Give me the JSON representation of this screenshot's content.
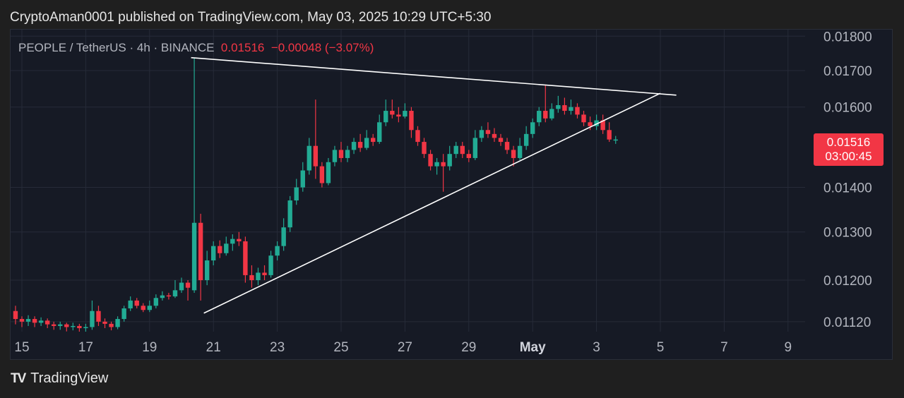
{
  "publisher_line": "CryptoAman0001 published on TradingView.com, May 03, 2025 10:29 UTC+5:30",
  "legend": {
    "symbol": "PEOPLE / TetherUS · 4h · BINANCE",
    "last": "0.01516",
    "change": "−0.00048 (−3.07%)"
  },
  "price_badge": {
    "price": "0.01516",
    "countdown": "03:00:45"
  },
  "brand": {
    "logo_text": "TV",
    "name": "TradingView"
  },
  "colors": {
    "up": "#22ab94",
    "down": "#f23645",
    "background": "#161a25",
    "trendline": "#ffffff"
  },
  "chart_data": {
    "type": "candlestick",
    "title": "PEOPLE / TetherUS · 4h · BINANCE",
    "x_ticks": [
      {
        "label": "15",
        "day": 15
      },
      {
        "label": "17",
        "day": 17
      },
      {
        "label": "19",
        "day": 19
      },
      {
        "label": "21",
        "day": 21
      },
      {
        "label": "23",
        "day": 23
      },
      {
        "label": "25",
        "day": 25
      },
      {
        "label": "27",
        "day": 27
      },
      {
        "label": "29",
        "day": 29
      },
      {
        "label": "May",
        "day": 31,
        "bold": true
      },
      {
        "label": "3",
        "day": 33
      },
      {
        "label": "5",
        "day": 35
      },
      {
        "label": "7",
        "day": 37
      },
      {
        "label": "9",
        "day": 39
      }
    ],
    "y_ticks": [
      "0.01800",
      "0.01700",
      "0.01600",
      "0.01400",
      "0.01300",
      "0.01200",
      "0.01120"
    ],
    "y_scale": "log",
    "grid": true,
    "trendlines": [
      {
        "name": "upper",
        "from": {
          "day": 20.3,
          "price": 0.01737
        },
        "to": {
          "day": 35.5,
          "price": 0.01632
        }
      },
      {
        "name": "lower",
        "from": {
          "day": 20.7,
          "price": 0.01136
        },
        "to": {
          "day": 35.0,
          "price": 0.01637
        }
      }
    ],
    "candles": [
      [
        14.8,
        0.0114,
        0.01125,
        0.0115,
        0.01115
      ],
      [
        15.0,
        0.01125,
        0.0112,
        0.0113,
        0.0111
      ],
      [
        15.2,
        0.0112,
        0.01125,
        0.01132,
        0.01112
      ],
      [
        15.4,
        0.01125,
        0.01118,
        0.0113,
        0.0111
      ],
      [
        15.6,
        0.01118,
        0.01122,
        0.01128,
        0.01112
      ],
      [
        15.8,
        0.01122,
        0.01115,
        0.01126,
        0.01108
      ],
      [
        16.0,
        0.01115,
        0.01112,
        0.0112,
        0.01105
      ],
      [
        16.2,
        0.01112,
        0.01115,
        0.0112,
        0.01105
      ],
      [
        16.4,
        0.01115,
        0.0111,
        0.01118,
        0.01102
      ],
      [
        16.6,
        0.0111,
        0.01112,
        0.01118,
        0.01104
      ],
      [
        16.8,
        0.01112,
        0.01108,
        0.01116,
        0.011
      ],
      [
        17.0,
        0.01108,
        0.0111,
        0.01116,
        0.011
      ],
      [
        17.2,
        0.0111,
        0.0114,
        0.0116,
        0.01105
      ],
      [
        17.4,
        0.0114,
        0.0112,
        0.0115,
        0.01112
      ],
      [
        17.6,
        0.0112,
        0.01116,
        0.01126,
        0.01108
      ],
      [
        17.8,
        0.01116,
        0.0111,
        0.0112,
        0.01104
      ],
      [
        18.0,
        0.0111,
        0.01125,
        0.0113,
        0.01106
      ],
      [
        18.2,
        0.01125,
        0.01145,
        0.0115,
        0.0112
      ],
      [
        18.4,
        0.01145,
        0.0116,
        0.01168,
        0.0114
      ],
      [
        18.6,
        0.0116,
        0.0115,
        0.01165,
        0.01145
      ],
      [
        18.8,
        0.0115,
        0.01142,
        0.01155,
        0.01138
      ],
      [
        19.0,
        0.01142,
        0.0115,
        0.0116,
        0.01138
      ],
      [
        19.2,
        0.0115,
        0.01165,
        0.01172,
        0.01145
      ],
      [
        19.4,
        0.01165,
        0.0117,
        0.01178,
        0.0116
      ],
      [
        19.6,
        0.0117,
        0.01168,
        0.01175,
        0.01162
      ],
      [
        19.8,
        0.01168,
        0.0118,
        0.012,
        0.01165
      ],
      [
        20.0,
        0.0118,
        0.01195,
        0.01205,
        0.01175
      ],
      [
        20.2,
        0.01195,
        0.01185,
        0.012,
        0.0116
      ],
      [
        20.4,
        0.0118,
        0.0132,
        0.01737,
        0.01175
      ],
      [
        20.6,
        0.0132,
        0.012,
        0.0134,
        0.0116
      ],
      [
        20.8,
        0.012,
        0.0124,
        0.0126,
        0.0119
      ],
      [
        21.0,
        0.0124,
        0.0127,
        0.0128,
        0.0123
      ],
      [
        21.2,
        0.0127,
        0.01255,
        0.01282,
        0.01245
      ],
      [
        21.4,
        0.01255,
        0.01275,
        0.0129,
        0.0125
      ],
      [
        21.6,
        0.01275,
        0.01285,
        0.01295,
        0.0126
      ],
      [
        21.8,
        0.01285,
        0.0128,
        0.013,
        0.0127
      ],
      [
        22.0,
        0.0128,
        0.0121,
        0.0129,
        0.01195
      ],
      [
        22.2,
        0.0121,
        0.012,
        0.0123,
        0.01185
      ],
      [
        22.4,
        0.012,
        0.01215,
        0.01225,
        0.0119
      ],
      [
        22.6,
        0.01215,
        0.0121,
        0.0123,
        0.012
      ],
      [
        22.8,
        0.0121,
        0.0125,
        0.0126,
        0.01205
      ],
      [
        23.0,
        0.0125,
        0.0127,
        0.0128,
        0.0124
      ],
      [
        23.2,
        0.0127,
        0.0131,
        0.0133,
        0.0126
      ],
      [
        23.4,
        0.0131,
        0.0137,
        0.0138,
        0.013
      ],
      [
        23.6,
        0.0137,
        0.014,
        0.0142,
        0.0136
      ],
      [
        23.8,
        0.014,
        0.0144,
        0.0146,
        0.0139
      ],
      [
        24.0,
        0.0144,
        0.015,
        0.0152,
        0.0143
      ],
      [
        24.2,
        0.015,
        0.0145,
        0.0162,
        0.0142
      ],
      [
        24.4,
        0.0145,
        0.0141,
        0.0146,
        0.014
      ],
      [
        24.6,
        0.0141,
        0.0146,
        0.0147,
        0.01405
      ],
      [
        24.8,
        0.0146,
        0.0149,
        0.015,
        0.0145
      ],
      [
        25.0,
        0.0149,
        0.0147,
        0.0151,
        0.0146
      ],
      [
        25.2,
        0.0147,
        0.0149,
        0.015,
        0.0146
      ],
      [
        25.4,
        0.0149,
        0.0151,
        0.0152,
        0.0148
      ],
      [
        25.6,
        0.0151,
        0.01495,
        0.0153,
        0.01485
      ],
      [
        25.8,
        0.01495,
        0.0152,
        0.0154,
        0.0149
      ],
      [
        26.0,
        0.0152,
        0.0151,
        0.0153,
        0.015
      ],
      [
        26.2,
        0.0151,
        0.0156,
        0.0158,
        0.01505
      ],
      [
        26.4,
        0.0156,
        0.0159,
        0.0162,
        0.0155
      ],
      [
        26.6,
        0.0159,
        0.0158,
        0.0162,
        0.0157
      ],
      [
        26.8,
        0.0158,
        0.01575,
        0.016,
        0.0156
      ],
      [
        27.0,
        0.01575,
        0.0159,
        0.0161,
        0.0157
      ],
      [
        27.2,
        0.0159,
        0.0154,
        0.016,
        0.0152
      ],
      [
        27.4,
        0.0154,
        0.0151,
        0.0155,
        0.015
      ],
      [
        27.6,
        0.0151,
        0.0148,
        0.0152,
        0.0147
      ],
      [
        27.8,
        0.0148,
        0.0145,
        0.0149,
        0.0144
      ],
      [
        28.0,
        0.0145,
        0.0146,
        0.0147,
        0.0143
      ],
      [
        28.2,
        0.0146,
        0.0145,
        0.0148,
        0.0139
      ],
      [
        28.4,
        0.0145,
        0.0148,
        0.015,
        0.0144
      ],
      [
        28.6,
        0.0148,
        0.015,
        0.0151,
        0.0147
      ],
      [
        28.8,
        0.015,
        0.0148,
        0.0151,
        0.0147
      ],
      [
        29.0,
        0.0148,
        0.0147,
        0.0149,
        0.0146
      ],
      [
        29.2,
        0.0147,
        0.0152,
        0.0154,
        0.01465
      ],
      [
        29.4,
        0.0152,
        0.0154,
        0.0155,
        0.0151
      ],
      [
        29.6,
        0.0154,
        0.0153,
        0.0156,
        0.0152
      ],
      [
        29.8,
        0.0153,
        0.0152,
        0.01545,
        0.0151
      ],
      [
        30.0,
        0.0152,
        0.0151,
        0.0153,
        0.015
      ],
      [
        30.2,
        0.0151,
        0.0149,
        0.0152,
        0.0148
      ],
      [
        30.4,
        0.0149,
        0.0147,
        0.015,
        0.0145
      ],
      [
        30.6,
        0.0147,
        0.015,
        0.0152,
        0.01465
      ],
      [
        30.8,
        0.015,
        0.0153,
        0.0155,
        0.0149
      ],
      [
        31.0,
        0.0153,
        0.0156,
        0.0157,
        0.0152
      ],
      [
        31.2,
        0.0156,
        0.0159,
        0.016,
        0.0155
      ],
      [
        31.4,
        0.0159,
        0.0157,
        0.0166,
        0.0156
      ],
      [
        31.6,
        0.0157,
        0.01595,
        0.0161,
        0.01565
      ],
      [
        31.8,
        0.01595,
        0.01605,
        0.0163,
        0.01585
      ],
      [
        32.0,
        0.01605,
        0.0159,
        0.01625,
        0.0158
      ],
      [
        32.2,
        0.0159,
        0.016,
        0.0162,
        0.0158
      ],
      [
        32.4,
        0.016,
        0.0158,
        0.0161,
        0.0157
      ],
      [
        32.6,
        0.0158,
        0.0156,
        0.0159,
        0.0155
      ],
      [
        32.8,
        0.0156,
        0.0155,
        0.01575,
        0.0154
      ],
      [
        33.0,
        0.0155,
        0.01565,
        0.0158,
        0.0154
      ],
      [
        33.2,
        0.01565,
        0.0154,
        0.0158,
        0.0153
      ],
      [
        33.4,
        0.0154,
        0.01516,
        0.0156,
        0.0151
      ],
      [
        33.6,
        0.01516,
        0.01516,
        0.01525,
        0.01505
      ]
    ]
  }
}
